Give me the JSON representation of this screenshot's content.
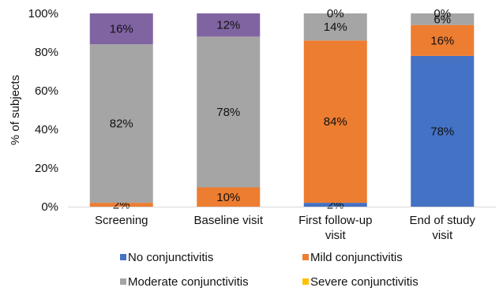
{
  "chart_data": {
    "type": "bar",
    "stacked": true,
    "title": "",
    "xlabel": "",
    "ylabel": "% of subjects",
    "ylim": [
      0,
      100
    ],
    "y_ticks": [
      "0%",
      "20%",
      "40%",
      "60%",
      "80%",
      "100%"
    ],
    "grid": false,
    "legend_position": "bottom",
    "categories": [
      [
        "Screening"
      ],
      [
        "Baseline visit"
      ],
      [
        "First follow-up",
        "visit"
      ],
      [
        "End of study",
        "visit"
      ]
    ],
    "series": [
      {
        "name": "No conjunctivitis",
        "color": "#4472C4",
        "values": [
          0,
          0,
          2,
          78
        ],
        "labels": [
          "",
          "",
          "2%",
          "78%"
        ]
      },
      {
        "name": "Mild conjunctivitis",
        "color": "#ED7D31",
        "values": [
          2,
          10,
          84,
          16
        ],
        "labels": [
          "2%",
          "10%",
          "84%",
          "16%"
        ]
      },
      {
        "name": "Moderate conjunctivitis",
        "color": "#A5A5A5",
        "values": [
          82,
          78,
          14,
          6
        ],
        "labels": [
          "82%",
          "78%",
          "14%",
          "6%"
        ]
      },
      {
        "name": "Severe conjunctivitis",
        "color": "#FFC000",
        "values": [
          0,
          0,
          0,
          0
        ],
        "labels": [
          "",
          "",
          "0%",
          "0%"
        ]
      },
      {
        "name": "",
        "color": "#8064A2",
        "values": [
          16,
          12,
          0,
          0
        ],
        "labels": [
          "16%",
          "12%",
          "",
          ""
        ]
      }
    ]
  }
}
